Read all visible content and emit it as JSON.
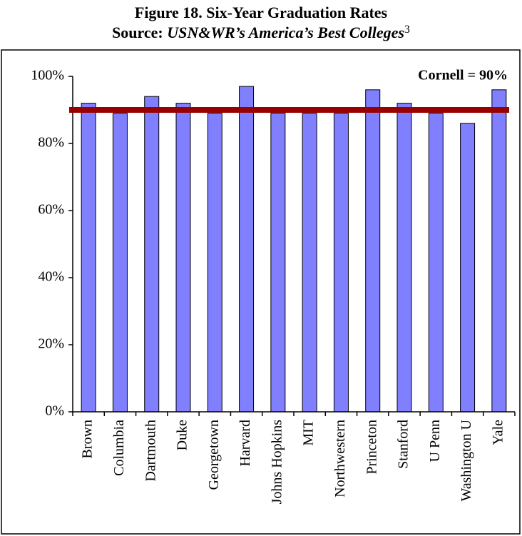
{
  "chart_data": {
    "type": "bar",
    "title": "Figure 18.  Six-Year Graduation Rates",
    "subtitle_prefix": "Source: ",
    "subtitle_source": "USN&WR’s America’s Best Colleges",
    "subtitle_note": "3",
    "categories": [
      "Brown",
      "Columbia",
      "Dartmouth",
      "Duke",
      "Georgetown",
      "Harvard",
      "Johns Hopkins",
      "MIT",
      "Northwestern",
      "Princeton",
      "Stanford",
      "U Penn",
      "Washington U",
      "Yale"
    ],
    "values": [
      92,
      89,
      94,
      92,
      89,
      97,
      89,
      89,
      89,
      96,
      92,
      89,
      86,
      96
    ],
    "color": "#8080ff",
    "ylim": [
      0,
      100
    ],
    "yticks": [
      {
        "value": 0,
        "label": "0%"
      },
      {
        "value": 20,
        "label": "20%"
      },
      {
        "value": 40,
        "label": "40%"
      },
      {
        "value": 60,
        "label": "60%"
      },
      {
        "value": 80,
        "label": "80%"
      },
      {
        "value": 100,
        "label": "100%"
      }
    ],
    "grid": false,
    "reference_line": {
      "value": 90,
      "label": "Cornell = 90%",
      "color": "#990000"
    }
  }
}
